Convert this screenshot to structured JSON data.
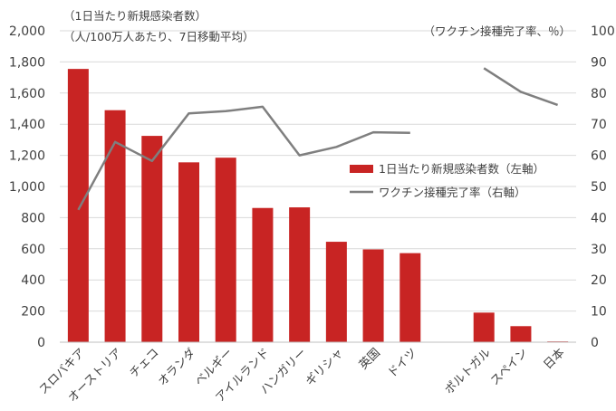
{
  "chart_data": {
    "type": "bar+line",
    "annotations": {
      "left_title_1": "（1日当たり新規感染者数）",
      "left_title_2": "（人/100万人あたり、7日移動平均）",
      "right_title": "（ワクチン接種完了率、％）"
    },
    "categories": [
      "スロバキア",
      "オーストリア",
      "チェコ",
      "オランダ",
      "ベルギー",
      "アイルランド",
      "ハンガリー",
      "ギリシャ",
      "英国",
      "ドイツ",
      "",
      "ポルトガル",
      "スペイン",
      "日本"
    ],
    "left_axis": {
      "ylim": [
        0,
        2000
      ],
      "tick_labels": [
        "0",
        "200",
        "400",
        "600",
        "800",
        "1,000",
        "1,200",
        "1,400",
        "1,600",
        "1,800",
        "2,000"
      ]
    },
    "right_axis": {
      "ylim": [
        0,
        100
      ],
      "tick_labels": [
        "0",
        "10",
        "20",
        "30",
        "40",
        "50",
        "60",
        "70",
        "80",
        "90",
        "100"
      ]
    },
    "series": [
      {
        "name": "1日当たり新規感染者数（左軸）",
        "type": "bar",
        "axis": "left",
        "color": "#c82423",
        "values": [
          1755,
          1490,
          1325,
          1155,
          1185,
          862,
          866,
          645,
          596,
          572,
          null,
          190,
          103,
          5
        ]
      },
      {
        "name": "ワクチン接種完了率（右軸）",
        "type": "line",
        "axis": "right",
        "color": "#7f7f7f",
        "segments": [
          [
            42.5,
            64.3,
            58.2,
            73.5,
            74.2,
            75.6,
            60.0,
            62.7,
            67.4,
            67.2,
            null,
            null,
            null,
            null
          ],
          [
            null,
            null,
            null,
            null,
            null,
            null,
            null,
            null,
            null,
            null,
            null,
            88.0,
            80.4,
            76.2
          ]
        ]
      }
    ],
    "legend": {
      "position": "center-right",
      "items": [
        "1日当たり新規感染者数（左軸）",
        "ワクチン接種完了率（右軸）"
      ]
    }
  }
}
